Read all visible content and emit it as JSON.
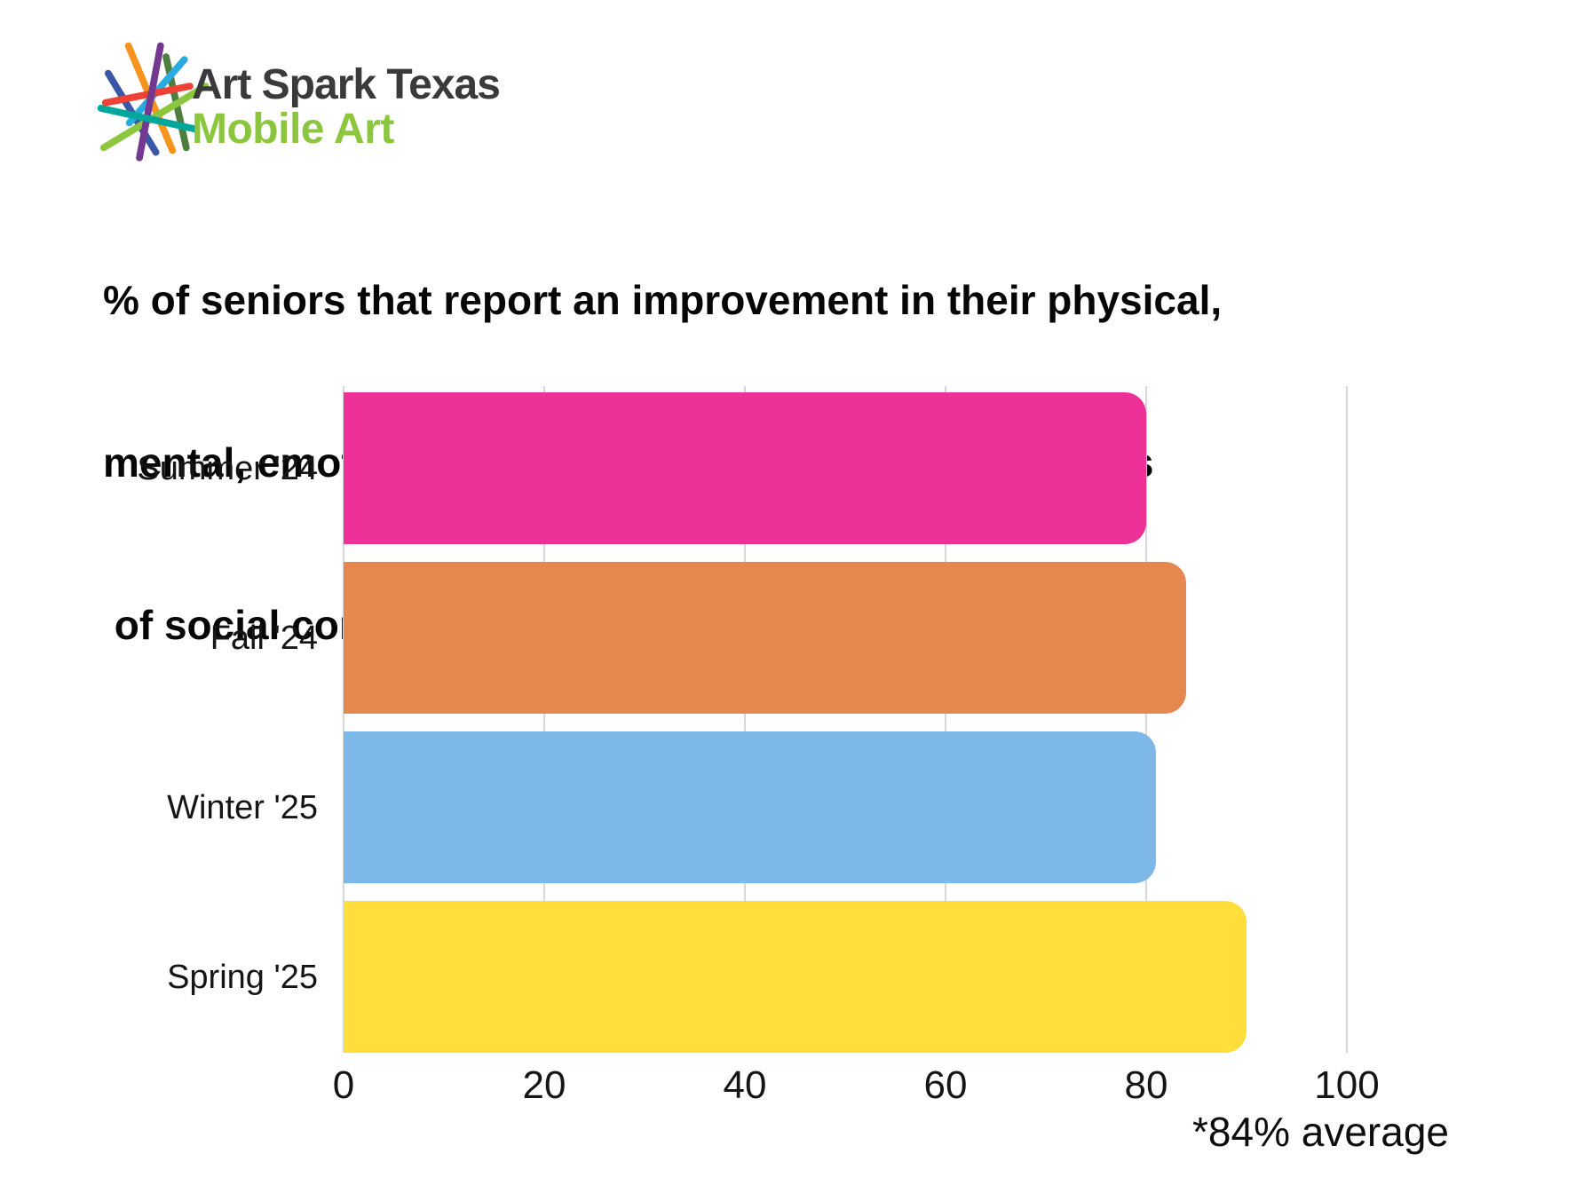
{
  "logo": {
    "title": "Art Spark Texas",
    "subtitle": "Mobile Art",
    "title_color": "#3a3a3c",
    "subtitle_color": "#8cc63f",
    "starburst_colors": {
      "blue": "#3a57a7",
      "orange": "#f7941d",
      "dark_green": "#4e7e3d",
      "sky_blue": "#29abe2",
      "red": "#ef4136",
      "lime": "#8cc63f",
      "purple": "#73388f",
      "teal": "#00a89c"
    }
  },
  "title": {
    "lines": [
      "% of seniors that report an improvement in their physical,",
      "mental, emotional, or social well-being and/or feelings",
      " of social connectivity."
    ]
  },
  "chart_data": {
    "type": "bar",
    "orientation": "horizontal",
    "title": "% of seniors that report an improvement in their physical, mental, emotional, or social well-being and/or feelings of social connectivity.",
    "categories": [
      "Summer '24",
      "Fall '24",
      "Winter '25",
      "Spring '25"
    ],
    "values": [
      80,
      84,
      81,
      90
    ],
    "bar_colors": [
      "#ee3199",
      "#e5884f",
      "#7db8e8",
      "#ffdd3a"
    ],
    "xlabel": "",
    "ylabel": "",
    "xlim": [
      0,
      100
    ],
    "x_ticks": [
      0,
      20,
      40,
      60,
      80,
      100
    ],
    "grid": true,
    "gridline_color": "#d7d7d7",
    "legend": "none",
    "annotation": "*84% average"
  }
}
